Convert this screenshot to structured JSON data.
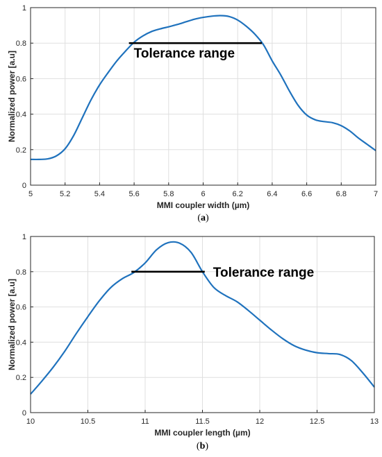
{
  "colors": {
    "series": "#1f72bd",
    "tolerance_line": "#000000"
  },
  "chart_data": [
    {
      "type": "line",
      "panel": "(a)",
      "caption_prefix": "(",
      "caption_letter": "a",
      "caption_suffix": ")",
      "title": "",
      "xlabel": "MMI coupler width (µm)",
      "ylabel": "Normalized power [a.u]",
      "xlim": [
        5,
        7
      ],
      "ylim": [
        0,
        1
      ],
      "xticks": [
        "5",
        "5.2",
        "5.4",
        "5.6",
        "5.8",
        "6",
        "6.2",
        "6.4",
        "6.6",
        "6.8",
        "7"
      ],
      "xtick_values": [
        5,
        5.2,
        5.4,
        5.6,
        5.8,
        6,
        6.2,
        6.4,
        6.6,
        6.8,
        7
      ],
      "yticks": [
        "0",
        "0.2",
        "0.4",
        "0.6",
        "0.8",
        "1"
      ],
      "ytick_values": [
        0,
        0.2,
        0.4,
        0.6,
        0.8,
        1
      ],
      "grid": true,
      "series": [
        {
          "x": [
            5.0,
            5.05,
            5.1,
            5.15,
            5.2,
            5.25,
            5.3,
            5.35,
            5.4,
            5.45,
            5.5,
            5.55,
            5.6,
            5.65,
            5.7,
            5.75,
            5.8,
            5.85,
            5.9,
            5.95,
            6.0,
            6.05,
            6.1,
            6.15,
            6.2,
            6.25,
            6.3,
            6.35,
            6.4,
            6.45,
            6.5,
            6.55,
            6.6,
            6.65,
            6.7,
            6.75,
            6.8,
            6.85,
            6.9,
            6.95,
            7.0
          ],
          "y": [
            0.145,
            0.145,
            0.148,
            0.165,
            0.205,
            0.28,
            0.38,
            0.48,
            0.565,
            0.635,
            0.7,
            0.755,
            0.805,
            0.84,
            0.865,
            0.88,
            0.892,
            0.905,
            0.92,
            0.935,
            0.945,
            0.952,
            0.955,
            0.95,
            0.93,
            0.895,
            0.85,
            0.79,
            0.7,
            0.62,
            0.53,
            0.45,
            0.395,
            0.368,
            0.358,
            0.352,
            0.335,
            0.305,
            0.265,
            0.23,
            0.195
          ]
        }
      ],
      "tolerance": {
        "label": "Tolerance range",
        "x_start": 5.57,
        "x_end": 6.34,
        "y": 0.8
      }
    },
    {
      "type": "line",
      "panel": "(b)",
      "caption_prefix": "(",
      "caption_letter": "b",
      "caption_suffix": ")",
      "title": "",
      "xlabel": "MMI coupler length (µm)",
      "ylabel": "Normalized power [a.u]",
      "xlim": [
        10,
        13
      ],
      "ylim": [
        0,
        1
      ],
      "xticks": [
        "10",
        "10.5",
        "11",
        "11.5",
        "12",
        "12.5",
        "13"
      ],
      "xtick_values": [
        10,
        10.5,
        11,
        11.5,
        12,
        12.5,
        13
      ],
      "yticks": [
        "0",
        "0.2",
        "0.4",
        "0.6",
        "0.8",
        "1"
      ],
      "ytick_values": [
        0,
        0.2,
        0.4,
        0.6,
        0.8,
        1
      ],
      "grid": true,
      "series": [
        {
          "x": [
            10.0,
            10.1,
            10.2,
            10.3,
            10.4,
            10.5,
            10.6,
            10.7,
            10.8,
            10.9,
            11.0,
            11.1,
            11.2,
            11.3,
            11.4,
            11.5,
            11.6,
            11.7,
            11.8,
            11.9,
            12.0,
            12.1,
            12.2,
            12.3,
            12.4,
            12.5,
            12.6,
            12.7,
            12.8,
            12.9,
            13.0
          ],
          "y": [
            0.105,
            0.18,
            0.26,
            0.35,
            0.45,
            0.545,
            0.635,
            0.71,
            0.76,
            0.795,
            0.85,
            0.925,
            0.965,
            0.962,
            0.91,
            0.8,
            0.71,
            0.665,
            0.63,
            0.58,
            0.525,
            0.47,
            0.42,
            0.38,
            0.355,
            0.34,
            0.335,
            0.33,
            0.295,
            0.225,
            0.145
          ]
        }
      ],
      "tolerance": {
        "label": "Tolerance range",
        "x_start": 10.88,
        "x_end": 11.52,
        "y": 0.8
      }
    }
  ]
}
